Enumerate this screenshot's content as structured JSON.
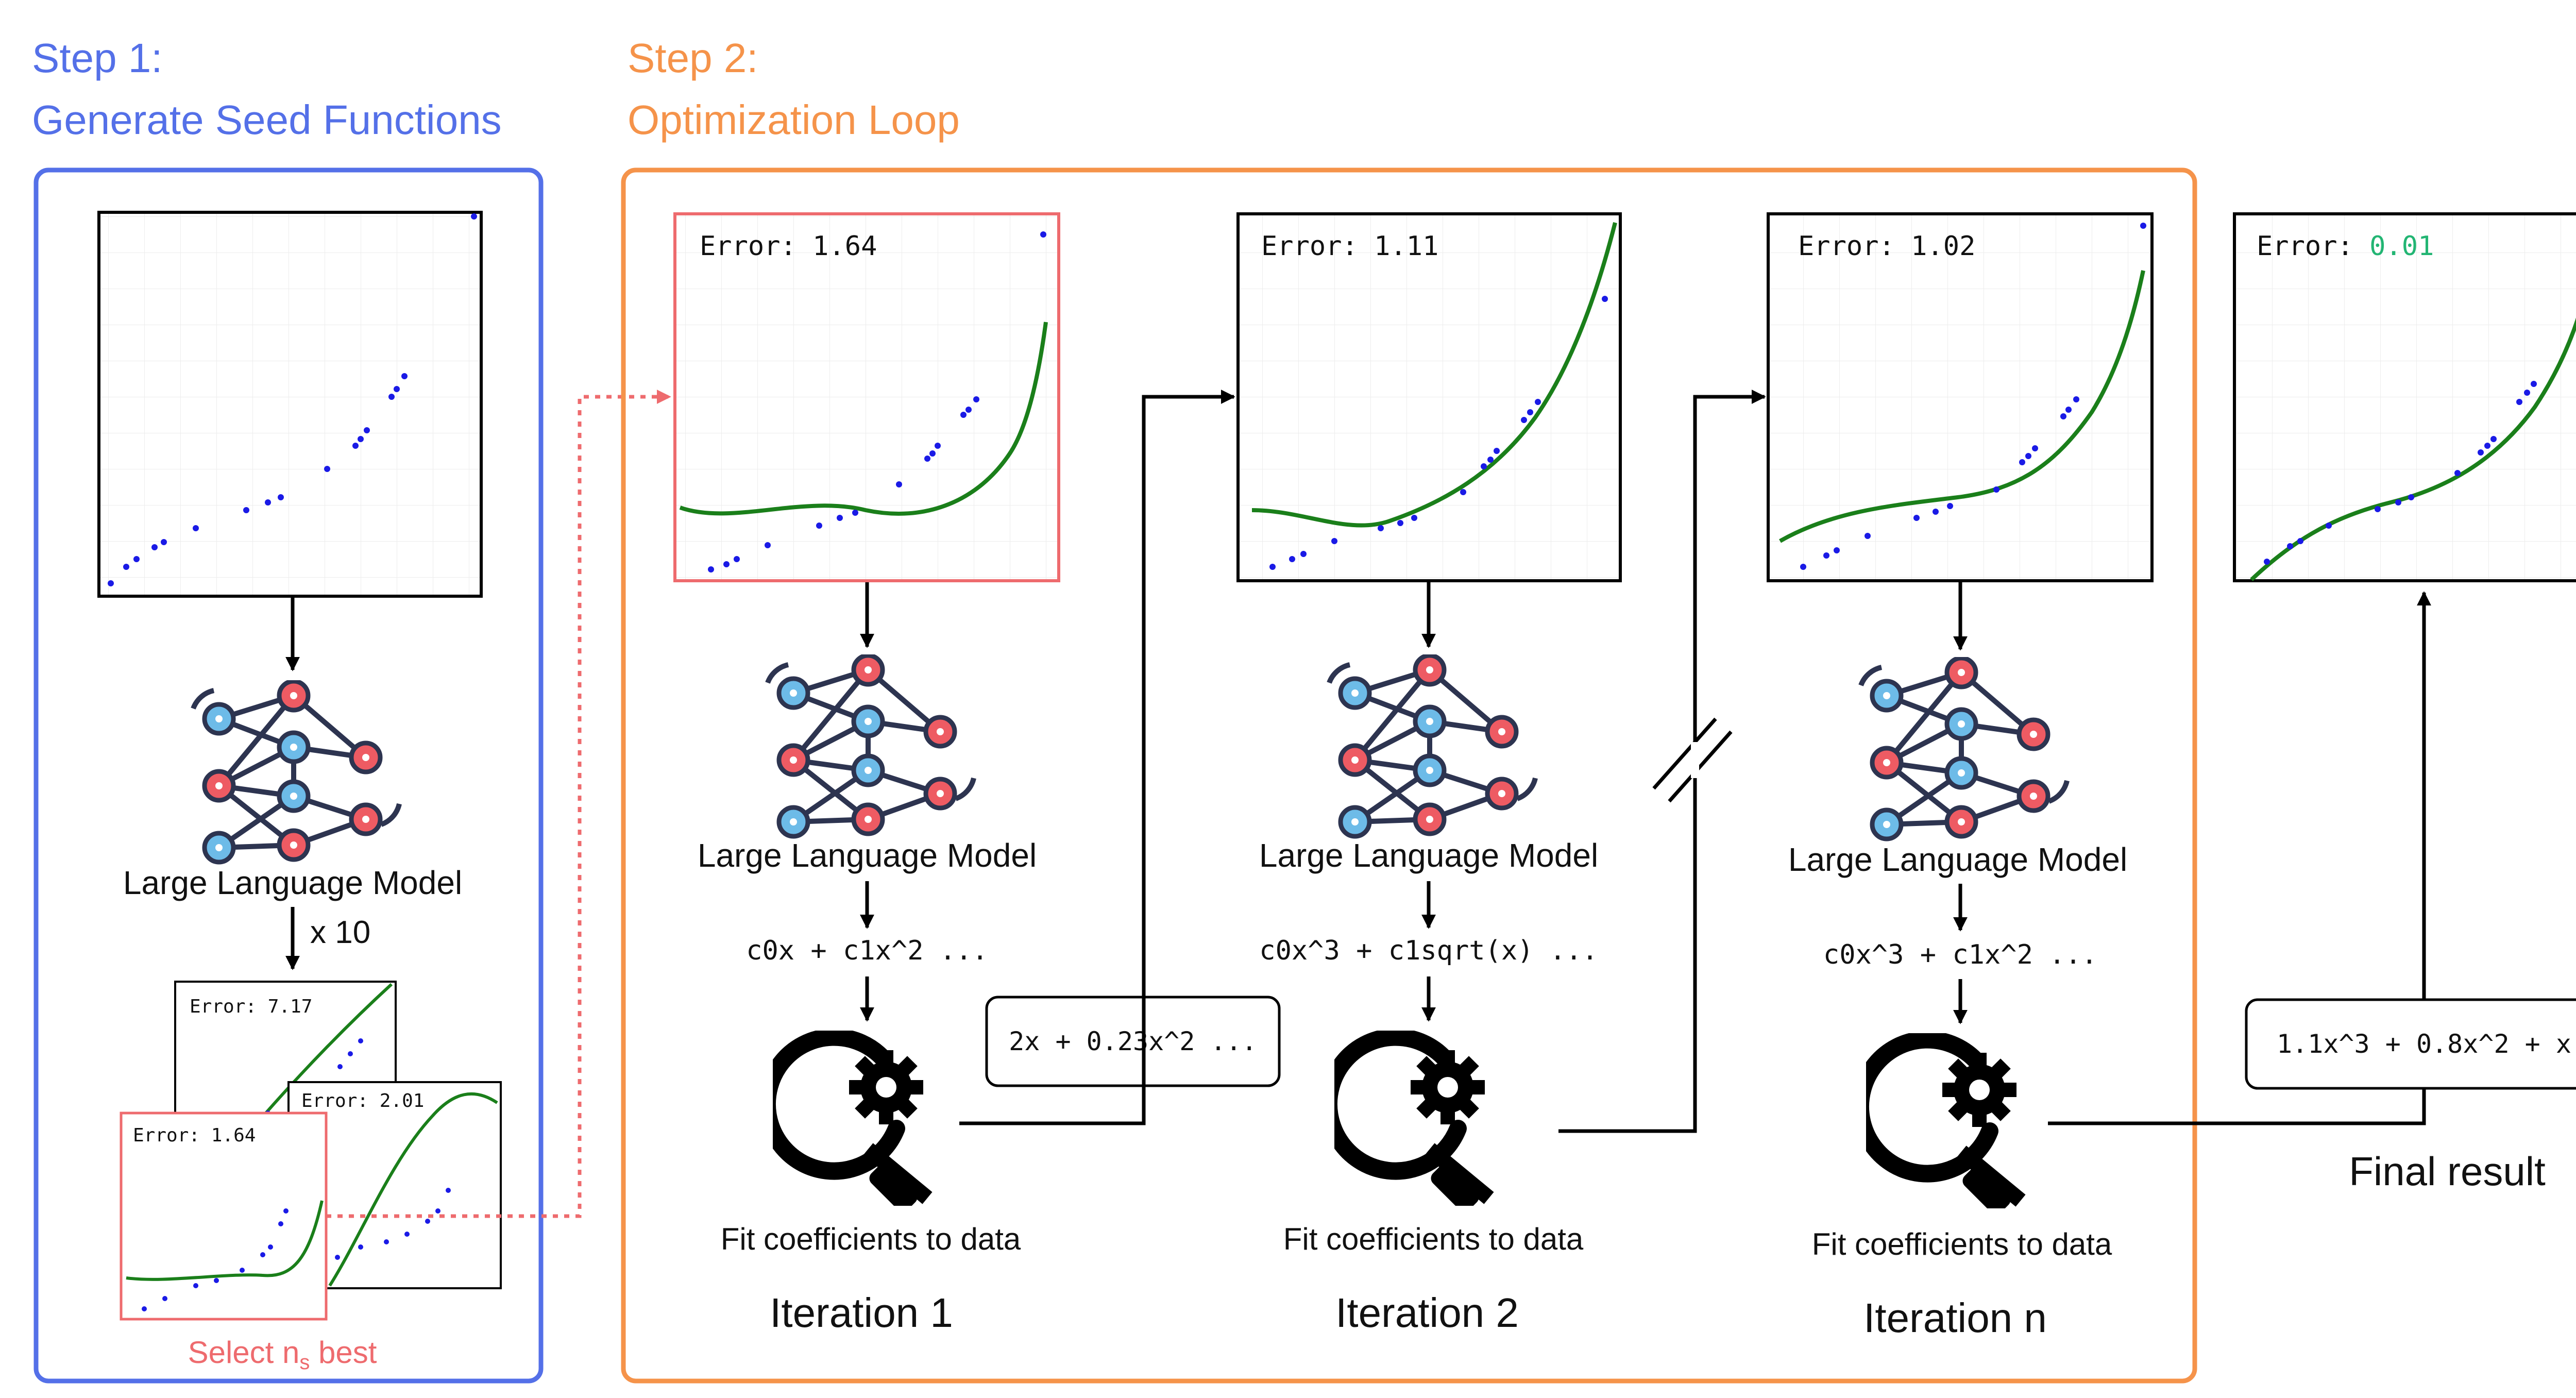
{
  "step1": {
    "heading_line1": "Step 1:",
    "heading_line2": "Generate Seed Functions",
    "color": "#5470E8",
    "llm_label": "Large Language Model",
    "multiplier": "x 10",
    "select_prefix": "Select n",
    "select_subscript": "s",
    "select_suffix": " best",
    "seed_cards": [
      {
        "error": "Error: 7.17"
      },
      {
        "error": "Error: 2.01"
      },
      {
        "error": "Error: 1.64"
      }
    ]
  },
  "step2": {
    "heading_line1": "Step 2:",
    "heading_line2": "Optimization Loop",
    "color": "#F5934A",
    "iterations": [
      {
        "error": "Error: 1.64",
        "llm_label": "Large Language Model",
        "template": "c0x + c1x^2 ...",
        "fit_label": "Fit coefficients to data",
        "iteration_label": "Iteration 1",
        "fitted": "2x + 0.23x^2 ..."
      },
      {
        "error": "Error: 1.11",
        "llm_label": "Large Language Model",
        "template": "c0x^3 + c1sqrt(x) ...",
        "fit_label": "Fit coefficients to data",
        "iteration_label": "Iteration 2"
      },
      {
        "error": "Error: 1.02",
        "llm_label": "Large Language Model",
        "template": "c0x^3 + c1x^2 ...",
        "fit_label": "Fit coefficients to data",
        "iteration_label": "Iteration n"
      }
    ]
  },
  "final": {
    "error_prefix": "Error: ",
    "error_value": "0.01",
    "error_color": "#22B573",
    "formula": "1.1x^3 + 0.8x^2 + x",
    "label": "Final result"
  },
  "colors": {
    "highlight": "#EE6B6E",
    "curve": "#1A7F1A",
    "points": "#1A1AE6",
    "neuron_blue": "#6DBBE8",
    "neuron_red": "#EE5B63",
    "network_line": "#2D3450"
  },
  "icons": [
    "neural-network-icon",
    "magnifier-gear-icon"
  ]
}
